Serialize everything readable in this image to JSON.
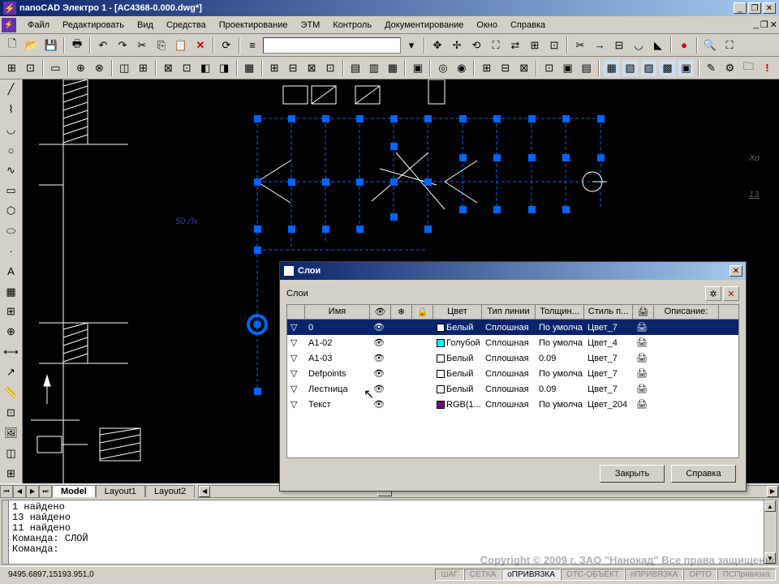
{
  "app": {
    "title": "nanoCAD Электро 1 - [АС4368-0.000.dwg*]",
    "icon_char": "⚡"
  },
  "menu": {
    "items": [
      "Файл",
      "Редактировать",
      "Вид",
      "Средства",
      "Проектирование",
      "ЭТМ",
      "Контроль",
      "Документирование",
      "Окно",
      "Справка"
    ]
  },
  "tabs": {
    "model": "Model",
    "layout1": "Layout1",
    "layout2": "Layout2"
  },
  "command": {
    "lines": [
      "1 найдено",
      "13 найдено",
      "11 найдено",
      "Команда: СЛОЙ",
      "Команда:"
    ]
  },
  "status": {
    "coords": "9495.6897,15193.951,0",
    "cells": [
      "ШАГ",
      "СЕТКА",
      "оПРИВЯЗКА",
      "ОТС-ОБЪЕКТ",
      "пПРИВЯЗКА",
      "ОРТО",
      "ПСПривязка"
    ],
    "active_index": 2
  },
  "copyright": "Copyright © 2009 г. ЗАО \"Нанокад\" Все права защищены",
  "canvas": {
    "annotation": "50 Лк",
    "annotation_color": "#3a3a9a",
    "grip_color": "#0066ff",
    "line_color": "#ffffff",
    "hatch_color": "#ffffff",
    "right_text1": "Хо",
    "right_text2": "13",
    "right_text_color": "#606060"
  },
  "dialog": {
    "title": "Слои",
    "subtitle": "Слои",
    "columns": [
      "",
      "Имя",
      "👁",
      "❄",
      "🔒",
      "Цвет",
      "Тип линии",
      "Толщин...",
      "Стиль п...",
      "🖨",
      "Описание:"
    ],
    "rows": [
      {
        "name": "0",
        "color_name": "Белый",
        "color": "#ffffff",
        "ltype": "Сплошная",
        "lweight": "По умолча",
        "pstyle": "Цвет_7",
        "selected": true
      },
      {
        "name": "А1-02",
        "color_name": "Голубой",
        "color": "#00ffff",
        "ltype": "Сплошная",
        "lweight": "По умолча",
        "pstyle": "Цвет_4"
      },
      {
        "name": "А1-03",
        "color_name": "Белый",
        "color": "#ffffff",
        "ltype": "Сплошная",
        "lweight": "0.09",
        "pstyle": "Цвет_7"
      },
      {
        "name": "Defpoints",
        "color_name": "Белый",
        "color": "#ffffff",
        "ltype": "Сплошная",
        "lweight": "По умолча",
        "pstyle": "Цвет_7"
      },
      {
        "name": "Лестница",
        "color_name": "Белый",
        "color": "#ffffff",
        "ltype": "Сплошная",
        "lweight": "0.09",
        "pstyle": "Цвет_7"
      },
      {
        "name": "Текст",
        "color_name": "RGB(1...",
        "color": "#800080",
        "ltype": "Сплошная",
        "lweight": "По умолча",
        "pstyle": "Цвет_204"
      }
    ],
    "btn_close": "Закрыть",
    "btn_help": "Справка"
  }
}
